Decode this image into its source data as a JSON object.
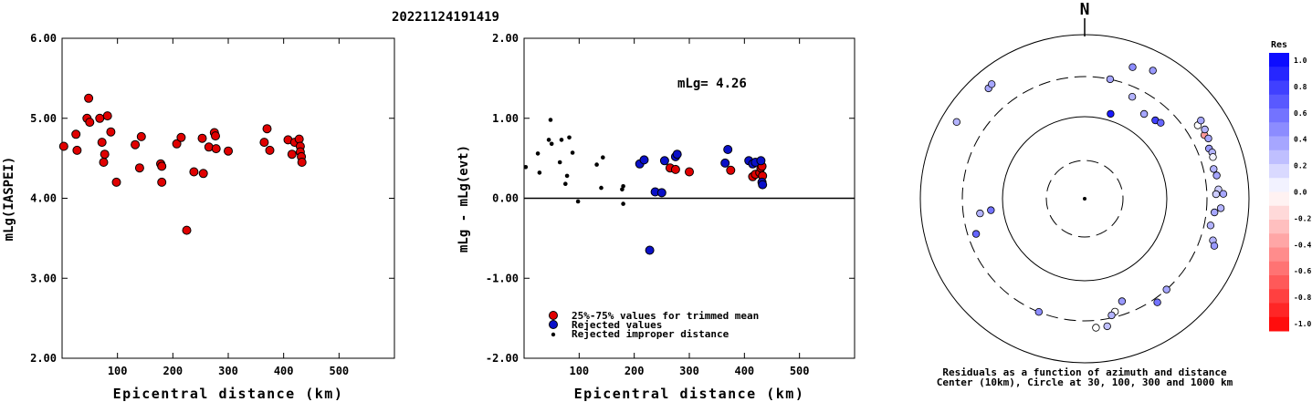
{
  "figure": {
    "title": "20221124191419"
  },
  "chart_data": [
    {
      "id": "left",
      "type": "scatter",
      "ylabel": "mLg(IASPEI)",
      "xlabel": "Epicentral distance (km)",
      "xlim": [
        0,
        600
      ],
      "ylim": [
        2.0,
        6.0
      ],
      "x_ticks": [
        "100",
        "200",
        "300",
        "400",
        "500"
      ],
      "y_ticks": [
        "2.00",
        "3.00",
        "4.00",
        "5.00",
        "6.00"
      ],
      "series": [
        {
          "color": "#e00000",
          "points": [
            [
              3,
              4.65
            ],
            [
              25,
              4.8
            ],
            [
              27,
              4.6
            ],
            [
              45,
              5.0
            ],
            [
              48,
              5.25
            ],
            [
              50,
              4.95
            ],
            [
              68,
              5.0
            ],
            [
              72,
              4.7
            ],
            [
              75,
              4.45
            ],
            [
              77,
              4.55
            ],
            [
              82,
              5.03
            ],
            [
              88,
              4.83
            ],
            [
              98,
              4.2
            ],
            [
              132,
              4.67
            ],
            [
              140,
              4.38
            ],
            [
              143,
              4.77
            ],
            [
              178,
              4.43
            ],
            [
              180,
              4.4
            ],
            [
              180,
              4.2
            ],
            [
              207,
              4.68
            ],
            [
              215,
              4.76
            ],
            [
              225,
              3.6
            ],
            [
              238,
              4.33
            ],
            [
              253,
              4.75
            ],
            [
              255,
              4.31
            ],
            [
              265,
              4.64
            ],
            [
              275,
              4.82
            ],
            [
              277,
              4.78
            ],
            [
              278,
              4.62
            ],
            [
              300,
              4.59
            ],
            [
              365,
              4.7
            ],
            [
              370,
              4.87
            ],
            [
              375,
              4.6
            ],
            [
              408,
              4.73
            ],
            [
              415,
              4.55
            ],
            [
              420,
              4.7
            ],
            [
              428,
              4.74
            ],
            [
              430,
              4.65
            ],
            [
              430,
              4.58
            ],
            [
              432,
              4.52
            ],
            [
              433,
              4.45
            ]
          ]
        }
      ]
    },
    {
      "id": "middle",
      "type": "scatter",
      "ylabel": "mLg - mLg(evt)",
      "xlabel": "Epicentral distance (km)",
      "xlim": [
        0,
        600
      ],
      "ylim": [
        -2.0,
        2.0
      ],
      "x_ticks": [
        "100",
        "200",
        "300",
        "400",
        "500"
      ],
      "y_ticks": [
        "-2.00",
        "-1.00",
        "0.00",
        "1.00",
        "2.00"
      ],
      "zero_line": true,
      "annotation": "mLg= 4.26",
      "legend": [
        "25%-75% values for trimmed mean",
        "Rejected values",
        "Rejected improper distance"
      ],
      "series": [
        {
          "name": "25%-75% values for trimmed mean",
          "color": "#e00000",
          "points": [
            [
              265,
              0.38
            ],
            [
              275,
              0.36
            ],
            [
              300,
              0.33
            ],
            [
              375,
              0.35
            ],
            [
              415,
              0.27
            ],
            [
              420,
              0.3
            ],
            [
              428,
              0.32
            ],
            [
              430,
              0.38
            ],
            [
              432,
              0.4
            ],
            [
              433,
              0.28
            ]
          ]
        },
        {
          "name": "Rejected values",
          "color": "#0a10c8",
          "points": [
            [
              210,
              0.43
            ],
            [
              218,
              0.48
            ],
            [
              228,
              -0.65
            ],
            [
              238,
              0.08
            ],
            [
              250,
              0.07
            ],
            [
              255,
              0.47
            ],
            [
              275,
              0.52
            ],
            [
              278,
              0.55
            ],
            [
              365,
              0.44
            ],
            [
              370,
              0.61
            ],
            [
              408,
              0.47
            ],
            [
              415,
              0.43
            ],
            [
              420,
              0.45
            ],
            [
              430,
              0.47
            ],
            [
              432,
              0.2
            ],
            [
              433,
              0.17
            ]
          ]
        },
        {
          "name": "Rejected improper distance",
          "color": "#000000",
          "points": [
            [
              3,
              0.39
            ],
            [
              25,
              0.56
            ],
            [
              28,
              0.32
            ],
            [
              45,
              0.73
            ],
            [
              48,
              0.98
            ],
            [
              50,
              0.68
            ],
            [
              65,
              0.45
            ],
            [
              68,
              0.73
            ],
            [
              75,
              0.18
            ],
            [
              78,
              0.28
            ],
            [
              82,
              0.76
            ],
            [
              88,
              0.57
            ],
            [
              98,
              -0.04
            ],
            [
              132,
              0.42
            ],
            [
              140,
              0.13
            ],
            [
              143,
              0.51
            ],
            [
              178,
              0.11
            ],
            [
              180,
              0.15
            ],
            [
              180,
              -0.07
            ]
          ]
        }
      ]
    },
    {
      "id": "polar",
      "type": "scatter",
      "compass_label": "N",
      "caption": [
        "Residuals as a function of azimuth and distance",
        "Center (10km), Circle at 30, 100, 300 and 1000 km"
      ],
      "colorbar": {
        "title": "Res",
        "ticks": [
          "1.0",
          "0.8",
          "0.6",
          "0.4",
          "0.2",
          "0.0",
          "-0.2",
          "-0.4",
          "-0.6",
          "-0.8",
          "-1.0"
        ],
        "min": -1.0,
        "max": 1.0
      },
      "points_residual": [
        {
          "az": 319,
          "dist": 600,
          "res": 0.35
        },
        {
          "az": 321,
          "dist": 620,
          "res": 0.35
        },
        {
          "az": 20,
          "dist": 500,
          "res": 0.45
        },
        {
          "az": 28,
          "dist": 580,
          "res": 0.4
        },
        {
          "az": 35,
          "dist": 180,
          "res": 0.35
        },
        {
          "az": 42,
          "dist": 190,
          "res": 0.75
        },
        {
          "az": 45,
          "dist": 200,
          "res": 0.6
        },
        {
          "az": 17,
          "dist": 120,
          "res": 0.9
        },
        {
          "az": 301,
          "dist": 650,
          "res": 0.3
        },
        {
          "az": 57,
          "dist": 430,
          "res": 0.0
        },
        {
          "az": 62,
          "dist": 440,
          "res": -0.4
        },
        {
          "az": 64,
          "dist": 465,
          "res": 0.35
        },
        {
          "az": 60,
          "dist": 480,
          "res": 0.3
        },
        {
          "az": 56,
          "dist": 500,
          "res": 0.35
        },
        {
          "az": 68,
          "dist": 420,
          "res": 0.4
        },
        {
          "az": 70,
          "dist": 440,
          "res": 0.3
        },
        {
          "az": 72,
          "dist": 430,
          "res": 0.05
        },
        {
          "az": 77,
          "dist": 400,
          "res": 0.3
        },
        {
          "az": 80,
          "dist": 420,
          "res": 0.35
        },
        {
          "az": 86,
          "dist": 420,
          "res": 0.2
        },
        {
          "az": 88,
          "dist": 390,
          "res": 0.2
        },
        {
          "az": 94,
          "dist": 450,
          "res": 0.3
        },
        {
          "az": 96,
          "dist": 380,
          "res": 0.35
        },
        {
          "az": 102,
          "dist": 360,
          "res": 0.3
        },
        {
          "az": 88,
          "dist": 480,
          "res": 0.35
        },
        {
          "az": 108,
          "dist": 430,
          "res": 0.3
        },
        {
          "az": 110,
          "dist": 470,
          "res": 0.4
        },
        {
          "az": 160,
          "dist": 210,
          "res": 0.4
        },
        {
          "az": 165,
          "dist": 260,
          "res": 0.0
        },
        {
          "az": 167,
          "dist": 280,
          "res": 0.3
        },
        {
          "az": 170,
          "dist": 370,
          "res": 0.25
        },
        {
          "az": 175,
          "dist": 370,
          "res": 0.0
        },
        {
          "az": 202,
          "dist": 300,
          "res": 0.45
        },
        {
          "az": 263,
          "dist": 140,
          "res": 0.55
        },
        {
          "az": 262,
          "dist": 190,
          "res": 0.3
        },
        {
          "az": 252,
          "dist": 240,
          "res": 0.6
        },
        {
          "az": 25,
          "dist": 230,
          "res": 0.3
        },
        {
          "az": 138,
          "dist": 300,
          "res": 0.35
        },
        {
          "az": 12,
          "dist": 300,
          "res": 0.35
        },
        {
          "az": 145,
          "dist": 340,
          "res": 0.55
        }
      ]
    }
  ]
}
